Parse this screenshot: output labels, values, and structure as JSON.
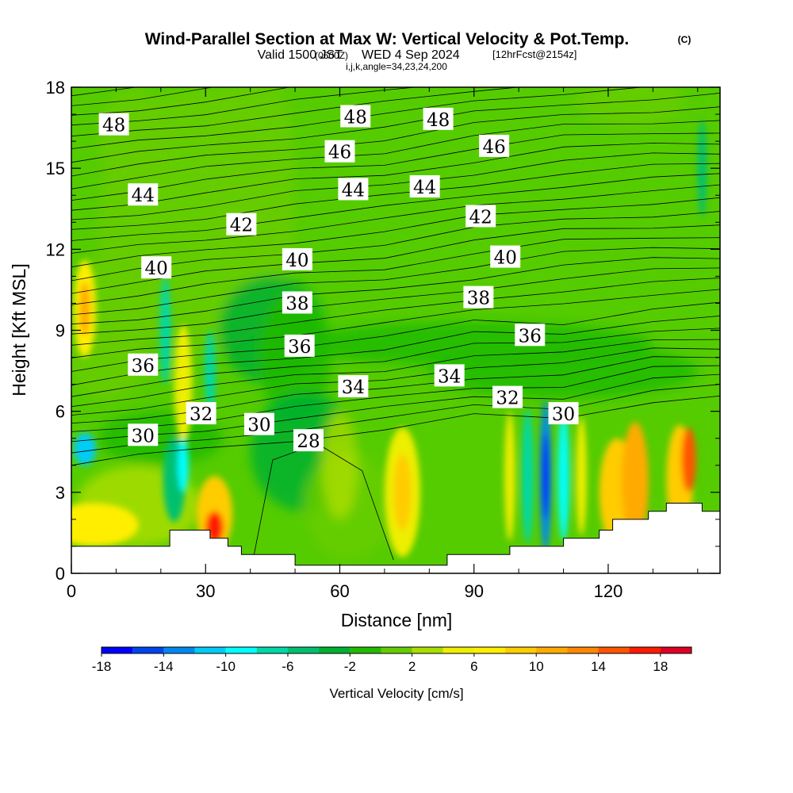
{
  "title": {
    "main": "Wind-Parallel Section at Max W: Vertical Velocity & Pot.Temp.",
    "copyright": "(C)",
    "valid_prefix": "Valid 1500 JST",
    "utc": "(0600Z)",
    "valid_date": "WED 4 Sep 2024",
    "forecast": "[12hrFcst@2154z]",
    "params": "i,j,k,angle=34,23,24,200"
  },
  "chart_data": {
    "type": "heatmap",
    "xlabel": "Distance [nm]",
    "ylabel": "Height [Kft MSL]",
    "xlim": [
      0,
      145
    ],
    "ylim": [
      0,
      18
    ],
    "xticks": [
      0,
      30,
      60,
      90,
      120
    ],
    "yticks": [
      0,
      3,
      6,
      9,
      12,
      15,
      18
    ],
    "colorbar": {
      "label": "Vertical Velocity [cm/s]",
      "min": -18,
      "max": 20,
      "step": 2,
      "tick_labels": [
        "-18",
        "-14",
        "-10",
        "-6",
        "-2",
        "2",
        "6",
        "10",
        "14",
        "18"
      ],
      "colors": [
        "#0000ff",
        "#0044ee",
        "#0088ee",
        "#00ccf5",
        "#00ffff",
        "#00d8a8",
        "#00c070",
        "#00b030",
        "#22bb00",
        "#66cc00",
        "#aadd00",
        "#eeee00",
        "#ffee00",
        "#ffcc00",
        "#ffaa00",
        "#ff8800",
        "#ff5500",
        "#ff1a00",
        "#dd0022",
        "#bb0044",
        "#880077",
        "#550088"
      ]
    },
    "theta_contours": {
      "levels": [
        28,
        30,
        32,
        34,
        36,
        38,
        40,
        42,
        44,
        46,
        48
      ],
      "labels": [
        {
          "text": "48",
          "x": 9.5,
          "y": 16.6
        },
        {
          "text": "48",
          "x": 63.5,
          "y": 16.9
        },
        {
          "text": "48",
          "x": 82,
          "y": 16.8
        },
        {
          "text": "46",
          "x": 60,
          "y": 15.6
        },
        {
          "text": "46",
          "x": 94.5,
          "y": 15.8
        },
        {
          "text": "44",
          "x": 16,
          "y": 14.0
        },
        {
          "text": "44",
          "x": 63,
          "y": 14.2
        },
        {
          "text": "44",
          "x": 79,
          "y": 14.3
        },
        {
          "text": "42",
          "x": 38,
          "y": 12.9
        },
        {
          "text": "42",
          "x": 91.5,
          "y": 13.2
        },
        {
          "text": "40",
          "x": 19,
          "y": 11.3
        },
        {
          "text": "40",
          "x": 50.5,
          "y": 11.6
        },
        {
          "text": "40",
          "x": 97,
          "y": 11.7
        },
        {
          "text": "38",
          "x": 50.5,
          "y": 10.0
        },
        {
          "text": "38",
          "x": 91,
          "y": 10.2
        },
        {
          "text": "36",
          "x": 51,
          "y": 8.4
        },
        {
          "text": "36",
          "x": 102.5,
          "y": 8.8
        },
        {
          "text": "36",
          "x": 16,
          "y": 7.7
        },
        {
          "text": "34",
          "x": 63,
          "y": 6.9
        },
        {
          "text": "34",
          "x": 84.5,
          "y": 7.3
        },
        {
          "text": "32",
          "x": 97.5,
          "y": 6.5
        },
        {
          "text": "32",
          "x": 29,
          "y": 5.9
        },
        {
          "text": "30",
          "x": 42,
          "y": 5.5
        },
        {
          "text": "30",
          "x": 110,
          "y": 5.9
        },
        {
          "text": "30",
          "x": 16,
          "y": 5.1
        },
        {
          "text": "28",
          "x": 53,
          "y": 4.9
        }
      ]
    }
  }
}
